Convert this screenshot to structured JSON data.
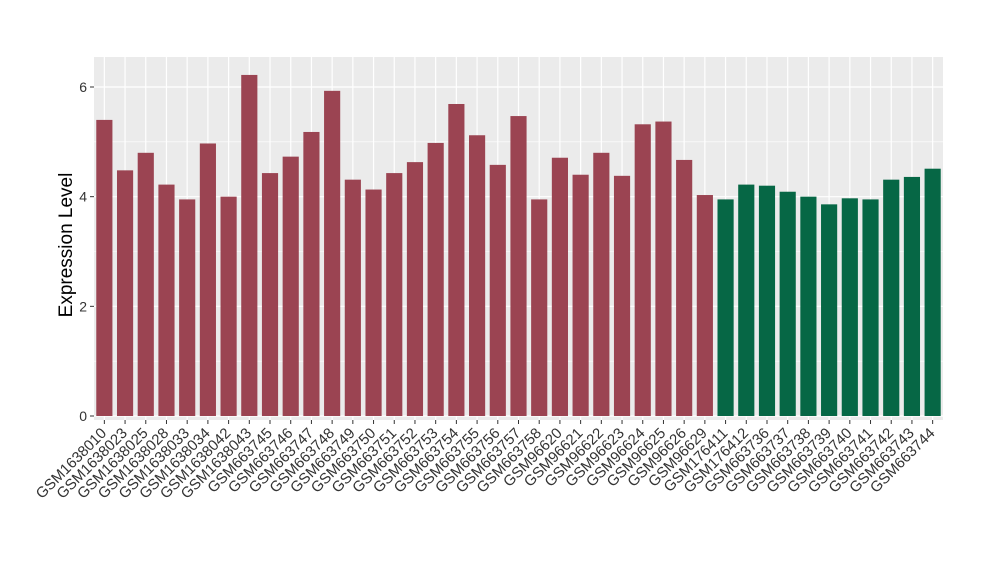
{
  "chart_data": {
    "type": "bar",
    "title": "",
    "xlabel": "",
    "ylabel": "Expression Level",
    "ylim": [
      0,
      6.5
    ],
    "yticks": [
      0,
      2,
      4,
      6
    ],
    "grid": true,
    "legend": "none",
    "colors": {
      "group_1": "#9b4452",
      "group_2": "#066745",
      "panel": "#ebebeb",
      "grid": "#ffffff",
      "text": "#333333"
    },
    "categories": [
      "GSM1638010",
      "GSM1638023",
      "GSM1638025",
      "GSM1638028",
      "GSM1638033",
      "GSM1638034",
      "GSM1638042",
      "GSM1638043",
      "GSM663745",
      "GSM663746",
      "GSM663747",
      "GSM663748",
      "GSM663749",
      "GSM663750",
      "GSM663751",
      "GSM663752",
      "GSM663753",
      "GSM663754",
      "GSM663755",
      "GSM663756",
      "GSM663757",
      "GSM663758",
      "GSM96620",
      "GSM96621",
      "GSM96622",
      "GSM96623",
      "GSM96624",
      "GSM96625",
      "GSM96626",
      "GSM96629",
      "GSM176411",
      "GSM176412",
      "GSM663736",
      "GSM663737",
      "GSM663738",
      "GSM663739",
      "GSM663740",
      "GSM663741",
      "GSM663742",
      "GSM663743",
      "GSM663744"
    ],
    "values": [
      5.4,
      4.48,
      4.8,
      4.22,
      3.95,
      4.97,
      4.0,
      6.22,
      4.43,
      4.73,
      5.18,
      5.93,
      4.31,
      4.13,
      4.43,
      4.63,
      4.98,
      5.69,
      5.12,
      4.58,
      5.47,
      3.95,
      4.71,
      4.4,
      4.8,
      4.38,
      5.32,
      5.37,
      4.67,
      4.03,
      3.95,
      4.22,
      4.2,
      4.09,
      4.0,
      3.86,
      3.97,
      3.95,
      4.31,
      4.36,
      4.51
    ],
    "groups": [
      1,
      1,
      1,
      1,
      1,
      1,
      1,
      1,
      1,
      1,
      1,
      1,
      1,
      1,
      1,
      1,
      1,
      1,
      1,
      1,
      1,
      1,
      1,
      1,
      1,
      1,
      1,
      1,
      1,
      1,
      2,
      2,
      2,
      2,
      2,
      2,
      2,
      2,
      2,
      2,
      2
    ]
  }
}
